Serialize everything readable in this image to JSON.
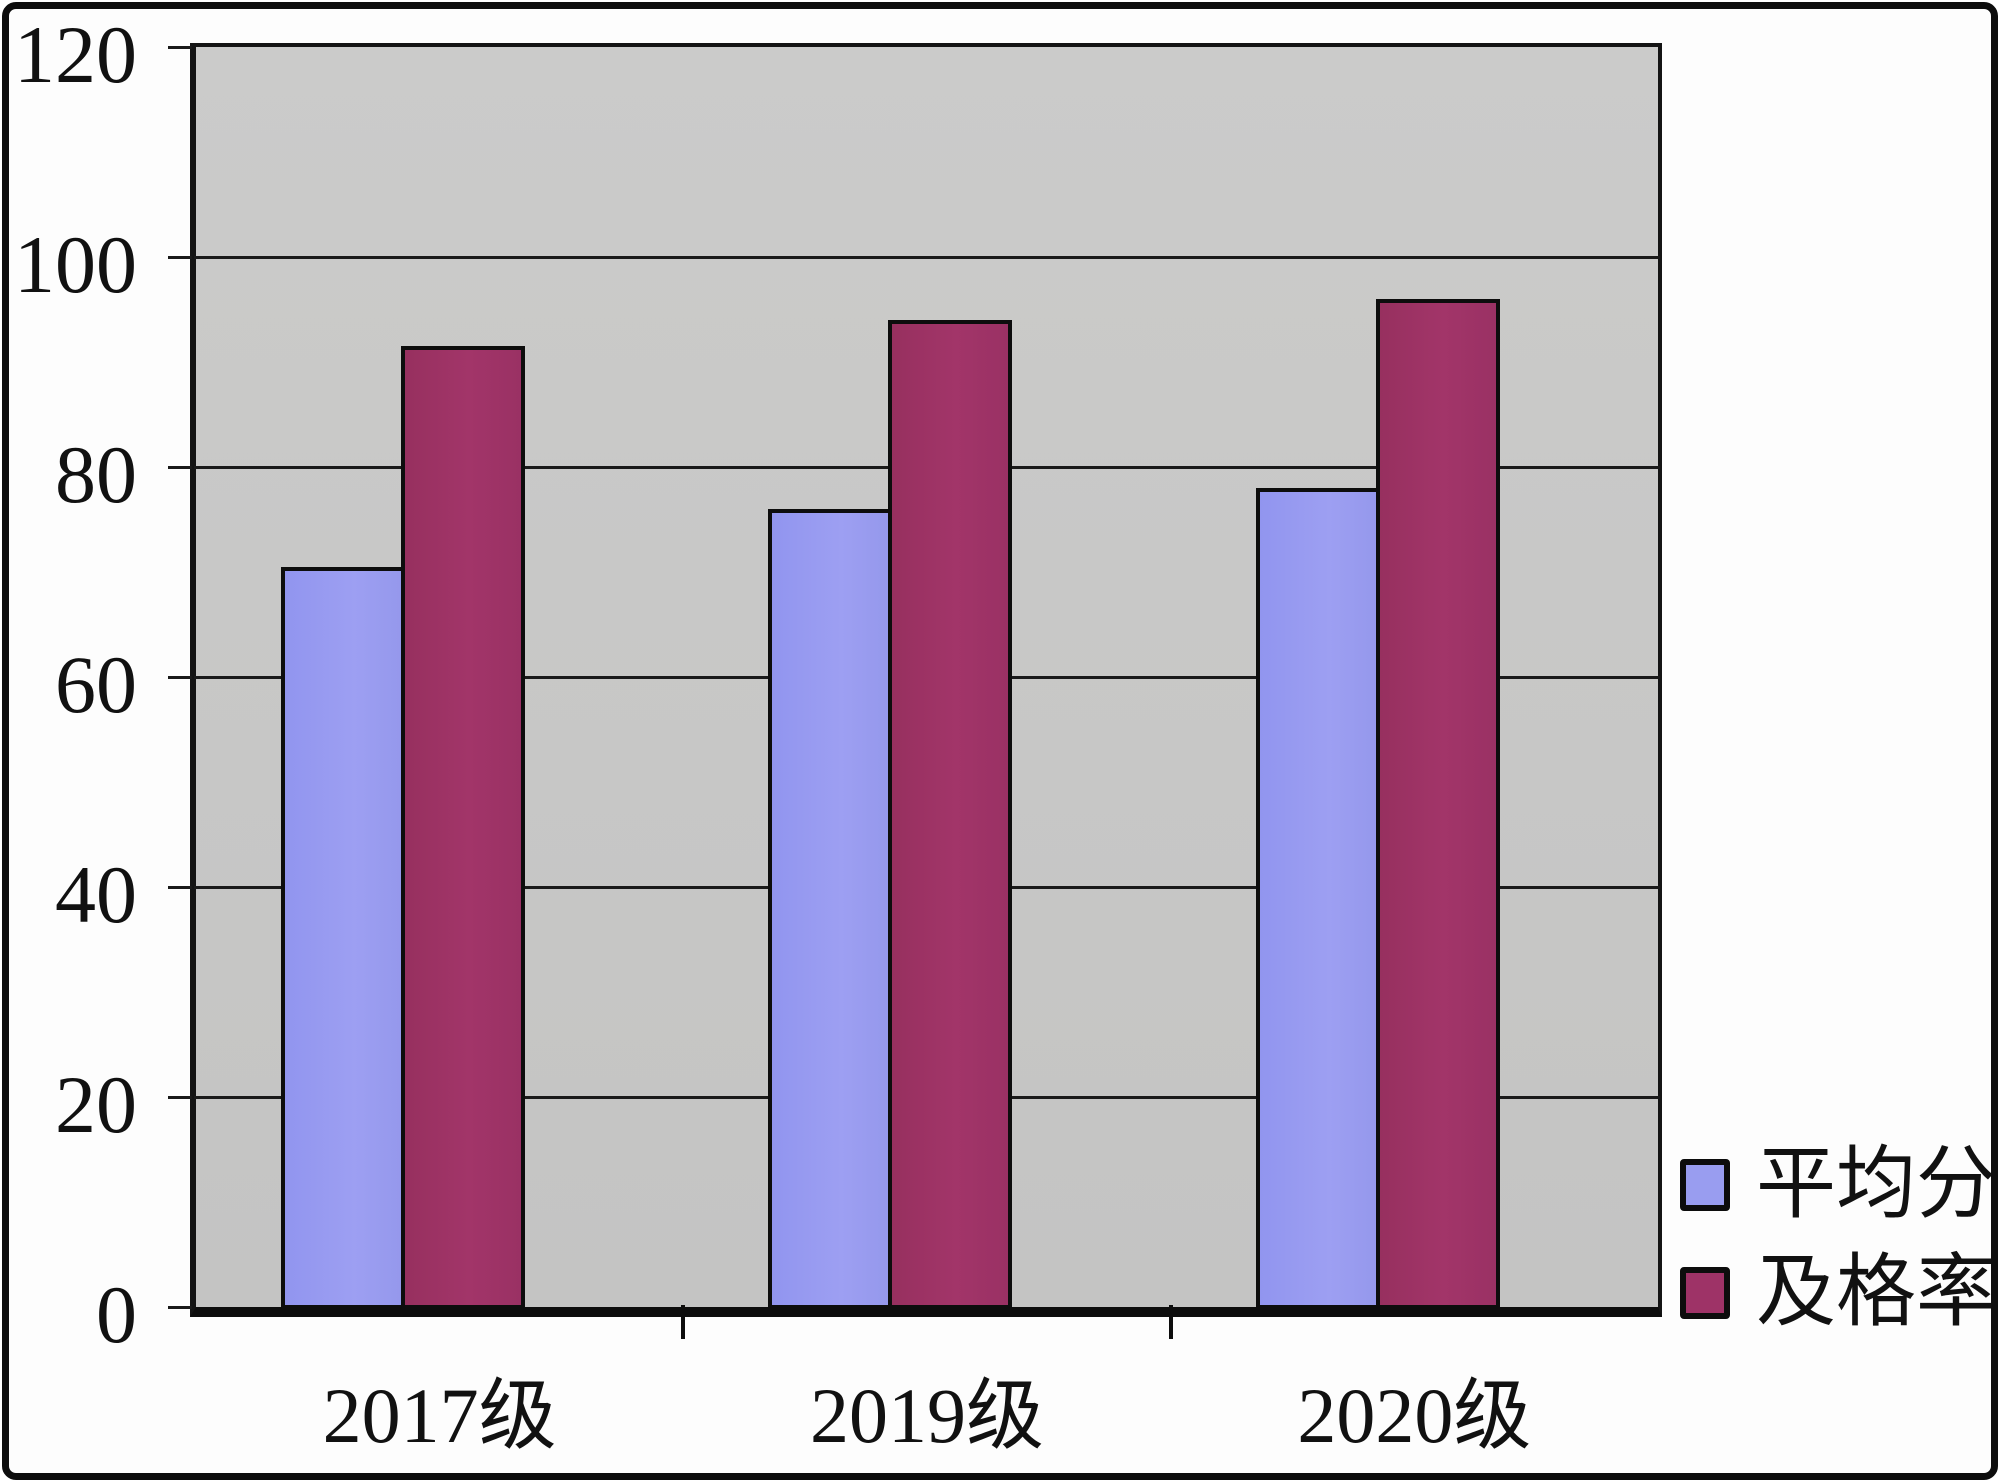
{
  "chart_data": {
    "type": "bar",
    "title": "",
    "xlabel": "",
    "ylabel": "",
    "categories": [
      "2017级",
      "2019级",
      "2020级"
    ],
    "series": [
      {
        "name": "平均分",
        "color_key": "avg",
        "color": "#999df0",
        "values": [
          70.5,
          76,
          78
        ]
      },
      {
        "name": "及格率",
        "color_key": "pass",
        "color": "#9e3367",
        "values": [
          91.5,
          94,
          96
        ]
      }
    ],
    "ylim": [
      0,
      120
    ],
    "yticks": [
      0,
      20,
      40,
      60,
      80,
      100,
      120
    ],
    "grid": "horizontal",
    "legend_position": "bottom-right",
    "plot_background": "#c6c6c5",
    "gridline_color": "#1a1a1a",
    "axis_text_color": "#111111"
  }
}
